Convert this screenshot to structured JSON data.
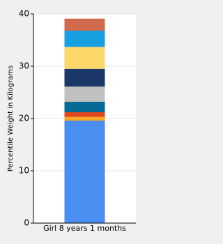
{
  "chart_data": {
    "type": "stacked-bar",
    "y_label": "Percentile Weight in Kilograms",
    "categories": [
      "Girl 8 years 1 months"
    ],
    "series": [
      {
        "color": "#4a8ef0",
        "values": [
          19.6
        ]
      },
      {
        "color": "#f5a623",
        "values": [
          0.7
        ]
      },
      {
        "color": "#e0461b",
        "values": [
          0.9
        ]
      },
      {
        "color": "#066a96",
        "values": [
          2.0
        ]
      },
      {
        "color": "#c0c0c0",
        "values": [
          2.9
        ]
      },
      {
        "color": "#1c3868",
        "values": [
          3.4
        ]
      },
      {
        "color": "#fcd76a",
        "values": [
          4.2
        ]
      },
      {
        "color": "#16a0e2",
        "values": [
          3.1
        ]
      },
      {
        "color": "#cf6b4c",
        "values": [
          2.3
        ]
      }
    ],
    "ylim": [
      0,
      40
    ],
    "yticks": [
      0,
      10,
      20,
      30,
      40
    ],
    "grid": true
  }
}
